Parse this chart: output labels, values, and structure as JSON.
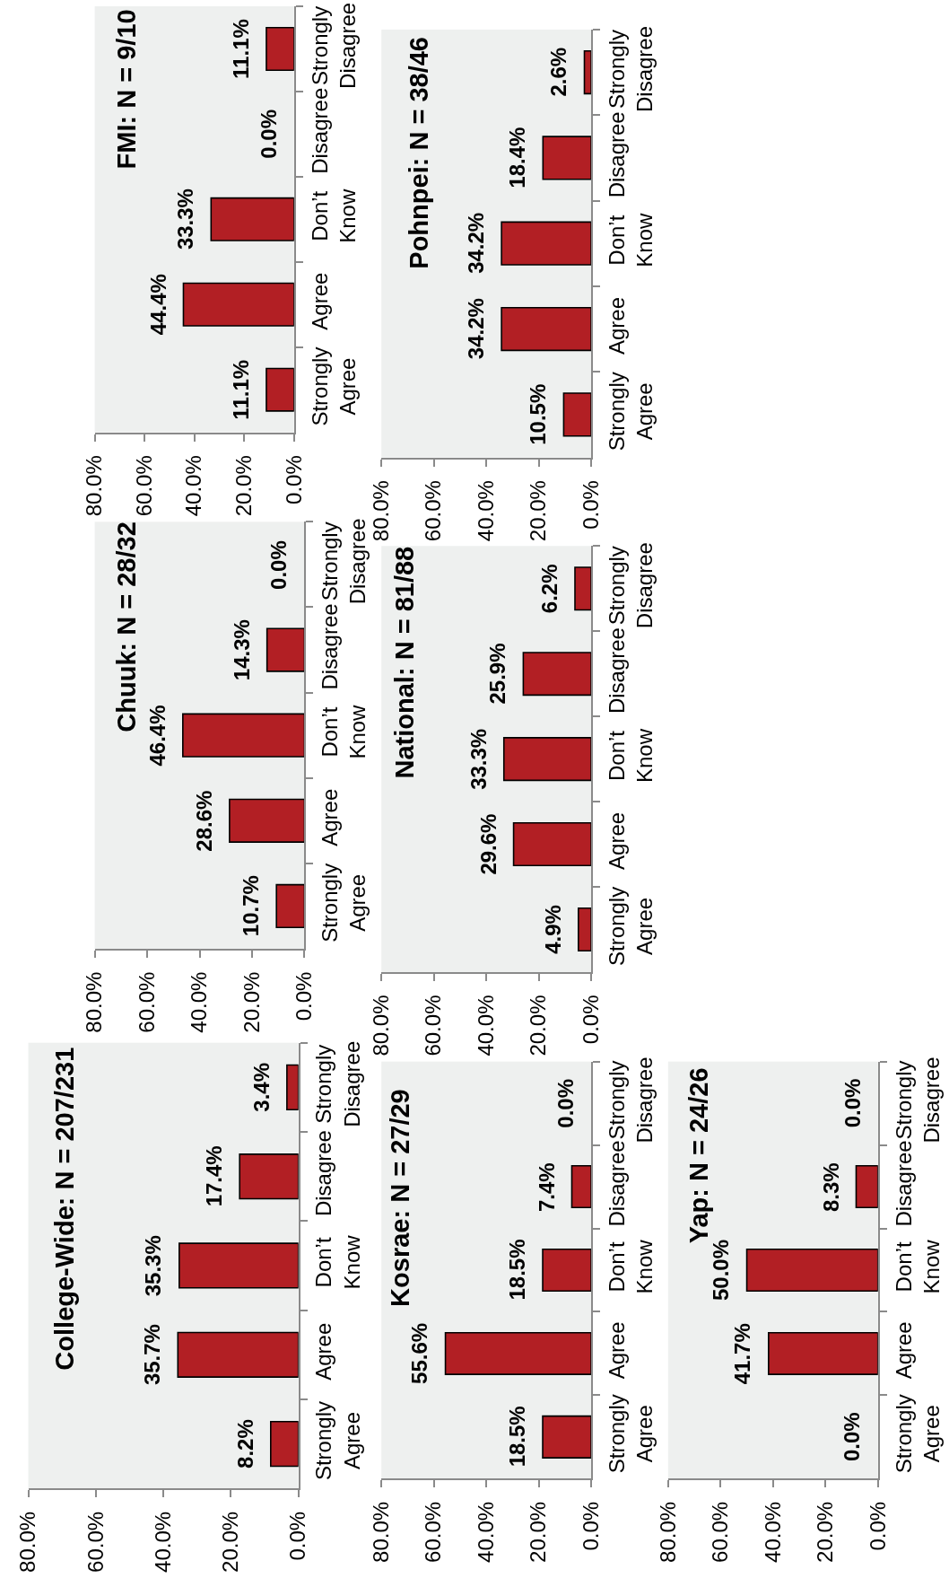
{
  "chart_data": [
    {
      "type": "bar",
      "orientation": "horizontal",
      "title": "College-Wide: N = 207/231",
      "categories": [
        "Strongly Disagree",
        "Disagree",
        "Don’t Know",
        "Agree",
        "Strongly Agree"
      ],
      "values": [
        3.4,
        17.4,
        35.3,
        35.7,
        8.2
      ],
      "value_labels": [
        "3.4%",
        "17.4%",
        "35.3%",
        "35.7%",
        "8.2%"
      ],
      "color": "#b21f24",
      "xlim": [
        80,
        0
      ],
      "xticks": [
        {
          "value": 80,
          "label": "80.0%"
        },
        {
          "value": 60,
          "label": "60.0%"
        },
        {
          "value": 40,
          "label": "40.0%"
        },
        {
          "value": 20,
          "label": "20.0%"
        },
        {
          "value": 0,
          "label": "0.0%"
        }
      ]
    },
    {
      "type": "bar",
      "orientation": "horizontal",
      "title": "Chuuk: N = 28/32",
      "categories": [
        "Strongly Disagree",
        "Disagree",
        "Don’t Know",
        "Agree",
        "Strongly Agree"
      ],
      "values": [
        0.0,
        14.3,
        46.4,
        28.6,
        10.7
      ],
      "value_labels": [
        "0.0%",
        "14.3%",
        "46.4%",
        "28.6%",
        "10.7%"
      ],
      "color": "#b21f24",
      "xlim": [
        80,
        0
      ],
      "xticks": [
        {
          "value": 80,
          "label": "80.0%"
        },
        {
          "value": 60,
          "label": "60.0%"
        },
        {
          "value": 40,
          "label": "40.0%"
        },
        {
          "value": 20,
          "label": "20.0%"
        },
        {
          "value": 0,
          "label": "0.0%"
        }
      ]
    },
    {
      "type": "bar",
      "orientation": "horizontal",
      "title": "FMI: N = 9/10",
      "categories": [
        "Strongly Disagree",
        "Disagree",
        "Don’t Know",
        "Agree",
        "Strongly Agree"
      ],
      "values": [
        11.1,
        0.0,
        33.3,
        44.4,
        11.1
      ],
      "value_labels": [
        "11.1%",
        "0.0%",
        "33.3%",
        "44.4%",
        "11.1%"
      ],
      "color": "#b21f24",
      "xlim": [
        80,
        0
      ],
      "xticks": [
        {
          "value": 80,
          "label": "80.0%"
        },
        {
          "value": 60,
          "label": "60.0%"
        },
        {
          "value": 40,
          "label": "40.0%"
        },
        {
          "value": 20,
          "label": "20.0%"
        },
        {
          "value": 0,
          "label": "0.0%"
        }
      ]
    },
    {
      "type": "bar",
      "orientation": "horizontal",
      "title": "Kosrae: N = 27/29",
      "categories": [
        "Strongly Disagree",
        "Disagree",
        "Don’t Know",
        "Agree",
        "Strongly Agree"
      ],
      "values": [
        0.0,
        7.4,
        18.5,
        55.6,
        18.5
      ],
      "value_labels": [
        "0.0%",
        "7.4%",
        "18.5%",
        "55.6%",
        "18.5%"
      ],
      "color": "#b21f24",
      "xlim": [
        80,
        0
      ],
      "xticks": [
        {
          "value": 80,
          "label": "80.0%"
        },
        {
          "value": 60,
          "label": "60.0%"
        },
        {
          "value": 40,
          "label": "40.0%"
        },
        {
          "value": 20,
          "label": "20.0%"
        },
        {
          "value": 0,
          "label": "0.0%"
        }
      ]
    },
    {
      "type": "bar",
      "orientation": "horizontal",
      "title": "National: N = 81/88",
      "categories": [
        "Strongly Disagree",
        "Disagree",
        "Don’t Know",
        "Agree",
        "Strongly Agree"
      ],
      "values": [
        6.2,
        25.9,
        33.3,
        29.6,
        4.9
      ],
      "value_labels": [
        "6.2%",
        "25.9%",
        "33.3%",
        "29.6%",
        "4.9%"
      ],
      "color": "#b21f24",
      "xlim": [
        80,
        0
      ],
      "xticks": [
        {
          "value": 80,
          "label": "80.0%"
        },
        {
          "value": 60,
          "label": "60.0%"
        },
        {
          "value": 40,
          "label": "40.0%"
        },
        {
          "value": 20,
          "label": "20.0%"
        },
        {
          "value": 0,
          "label": "0.0%"
        }
      ]
    },
    {
      "type": "bar",
      "orientation": "horizontal",
      "title": "Pohnpei: N = 38/46",
      "categories": [
        "Strongly Disagree",
        "Disagree",
        "Don’t Know",
        "Agree",
        "Strongly Agree"
      ],
      "values": [
        2.6,
        18.4,
        34.2,
        34.2,
        10.5
      ],
      "value_labels": [
        "2.6%",
        "18.4%",
        "34.2%",
        "34.2%",
        "10.5%"
      ],
      "color": "#b21f24",
      "xlim": [
        80,
        0
      ],
      "xticks": [
        {
          "value": 80,
          "label": "80.0%"
        },
        {
          "value": 60,
          "label": "60.0%"
        },
        {
          "value": 40,
          "label": "40.0%"
        },
        {
          "value": 20,
          "label": "20.0%"
        },
        {
          "value": 0,
          "label": "0.0%"
        }
      ]
    },
    {
      "type": "bar",
      "orientation": "horizontal",
      "title": "Yap: N = 24/26",
      "categories": [
        "Strongly Disagree",
        "Disagree",
        "Don’t Know",
        "Agree",
        "Strongly Agree"
      ],
      "values": [
        0.0,
        8.3,
        50.0,
        41.7,
        0.0
      ],
      "value_labels": [
        "0.0%",
        "8.3%",
        "50.0%",
        "41.7%",
        "0.0%"
      ],
      "color": "#b21f24",
      "xlim": [
        80,
        0
      ],
      "xticks": [
        {
          "value": 80,
          "label": "80.0%"
        },
        {
          "value": 60,
          "label": "60.0%"
        },
        {
          "value": 40,
          "label": "40.0%"
        },
        {
          "value": 20,
          "label": "20.0%"
        },
        {
          "value": 0,
          "label": "0.0%"
        }
      ]
    }
  ]
}
